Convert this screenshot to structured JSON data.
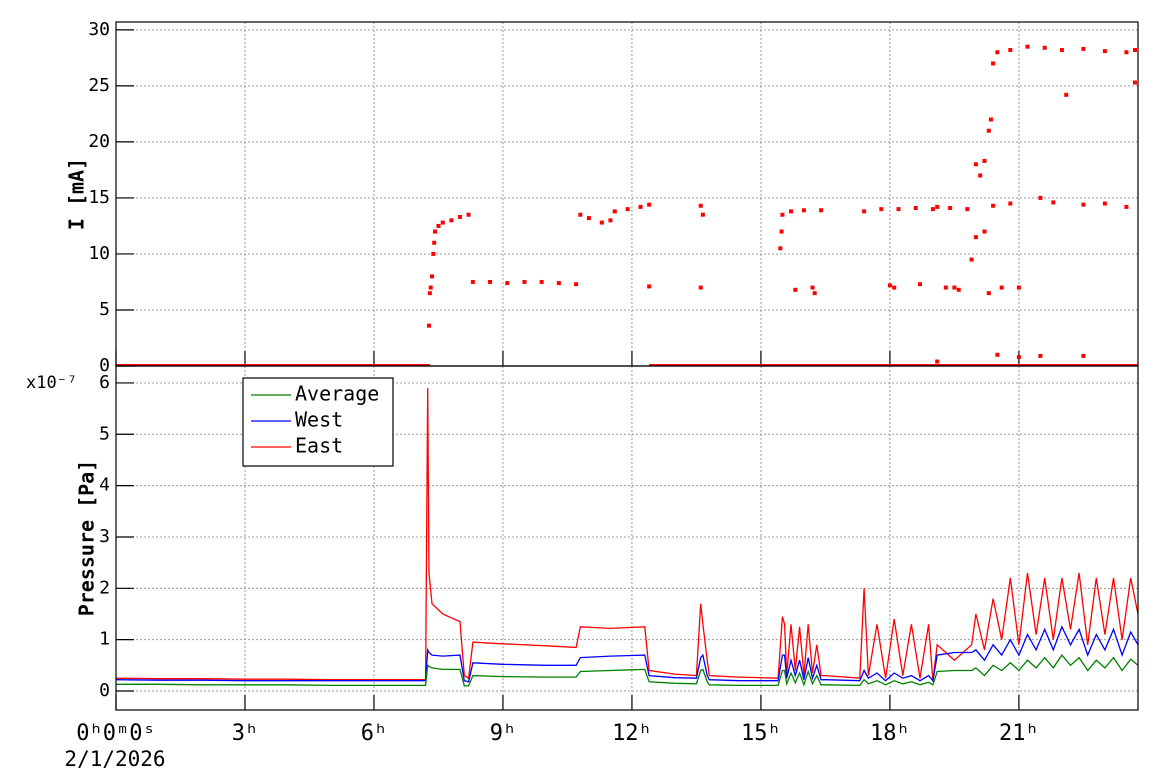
{
  "chart_data": [
    {
      "type": "scatter",
      "ylabel": "I [mA]",
      "xlim": [
        0,
        23.77
      ],
      "ylim": [
        0,
        30.7
      ],
      "yticks": [
        0,
        5,
        10,
        15,
        20,
        25,
        30
      ],
      "grid": true,
      "series": [
        {
          "color": "#ff0000",
          "style": "markers",
          "x": [
            7.28,
            7.3,
            7.32,
            7.35,
            7.38,
            7.4,
            7.42,
            7.5,
            7.6,
            7.8,
            8.0,
            8.2,
            8.3,
            8.7,
            9.1,
            9.5,
            9.9,
            10.3,
            10.7,
            10.8,
            11.0,
            11.3,
            11.5,
            11.6,
            11.9,
            12.2,
            12.4,
            12.4,
            13.6,
            13.65,
            13.6,
            15.45,
            15.48,
            15.5,
            15.7,
            16.0,
            16.4,
            15.8,
            16.2,
            16.25,
            17.4,
            17.8,
            18.2,
            18.6,
            19.0,
            18.0,
            18.1,
            18.7,
            19.1,
            19.4,
            19.8,
            19.3,
            19.5,
            19.6,
            19.9,
            20.0,
            20.0,
            20.1,
            20.2,
            20.3,
            20.35,
            20.4,
            20.5,
            20.8,
            21.2,
            21.6,
            22.0,
            22.5,
            23.0,
            23.5,
            23.7,
            23.7,
            22.1,
            20.4,
            20.8,
            21.5,
            21.8,
            22.5,
            23.0,
            23.5,
            20.2,
            20.3,
            20.6,
            21.0,
            19.1,
            20.5,
            21.0,
            21.5,
            22.5
          ],
          "values": [
            3.6,
            6.5,
            7.0,
            8.0,
            10.0,
            11.0,
            12.0,
            12.5,
            12.8,
            13.0,
            13.3,
            13.5,
            7.5,
            7.5,
            7.4,
            7.5,
            7.5,
            7.4,
            7.3,
            13.5,
            13.2,
            12.8,
            13.0,
            13.8,
            14.0,
            14.2,
            14.4,
            7.1,
            14.3,
            13.5,
            7.0,
            10.5,
            12.0,
            13.5,
            13.8,
            13.9,
            13.9,
            6.8,
            7.0,
            6.5,
            13.8,
            14.0,
            14.0,
            14.1,
            14.0,
            7.2,
            7.0,
            7.3,
            14.2,
            14.1,
            14.0,
            7.0,
            7.0,
            6.8,
            9.5,
            11.5,
            18.0,
            17.0,
            18.3,
            21.0,
            22.0,
            27.0,
            28.0,
            28.2,
            28.5,
            28.4,
            28.2,
            28.3,
            28.1,
            28.0,
            28.2,
            25.3,
            24.2,
            14.3,
            14.5,
            15.0,
            14.6,
            14.4,
            14.5,
            14.2,
            12.0,
            6.5,
            7.0,
            7.0,
            0.4,
            1.0,
            0.8,
            0.9,
            0.9
          ]
        },
        {
          "color": "#ff0000",
          "style": "line",
          "x": [
            0,
            7.3,
            7.35,
            12.4,
            23.77
          ],
          "values": [
            0,
            0,
            null,
            0,
            0
          ]
        }
      ]
    },
    {
      "type": "line",
      "ylabel": "Pressure [Pa]",
      "y_multiplier": "x10⁻⁷",
      "date_label": "2/1/2026",
      "legend": "top-left",
      "grid": true,
      "xlim": [
        0,
        23.77
      ],
      "ylim": [
        -0.37,
        6.33
      ],
      "yticks": [
        0,
        1,
        2,
        3,
        4,
        5,
        6
      ],
      "xticks": [
        {
          "value": 0,
          "label": "0ʰ0ᵐ0ˢ"
        },
        {
          "value": 3,
          "label": "3ʰ"
        },
        {
          "value": 6,
          "label": "6ʰ"
        },
        {
          "value": 9,
          "label": "9ʰ"
        },
        {
          "value": 12,
          "label": "12ʰ"
        },
        {
          "value": 15,
          "label": "15ʰ"
        },
        {
          "value": 18,
          "label": "18ʰ"
        },
        {
          "value": 21,
          "label": "21ʰ"
        }
      ],
      "x": [
        0,
        1,
        2,
        3,
        4,
        5,
        6,
        7.2,
        7.25,
        7.28,
        7.35,
        7.6,
        8.0,
        8.1,
        8.2,
        8.3,
        9,
        10,
        10.7,
        10.8,
        11.5,
        12.3,
        12.4,
        13,
        13.5,
        13.6,
        13.65,
        13.75,
        13.8,
        14.5,
        15.4,
        15.5,
        15.55,
        15.6,
        15.7,
        15.8,
        15.9,
        16.0,
        16.1,
        16.2,
        16.3,
        16.4,
        16.5,
        17.3,
        17.4,
        17.5,
        17.7,
        17.9,
        18.1,
        18.3,
        18.5,
        18.7,
        18.9,
        19.0,
        19.1,
        19.5,
        19.9,
        20.0,
        20.2,
        20.4,
        20.6,
        20.8,
        21.0,
        21.2,
        21.4,
        21.6,
        21.8,
        22.0,
        22.2,
        22.4,
        22.6,
        22.8,
        23.0,
        23.2,
        23.4,
        23.6,
        23.77
      ],
      "series": [
        {
          "name": "Average",
          "color": "#008000",
          "values": [
            0.13,
            0.13,
            0.12,
            0.12,
            0.12,
            0.11,
            0.11,
            0.11,
            0.5,
            0.48,
            0.45,
            0.42,
            0.42,
            0.1,
            0.1,
            0.3,
            0.28,
            0.27,
            0.27,
            0.38,
            0.4,
            0.42,
            0.18,
            0.15,
            0.14,
            0.4,
            0.42,
            0.18,
            0.12,
            0.11,
            0.11,
            0.4,
            0.4,
            0.14,
            0.35,
            0.16,
            0.35,
            0.12,
            0.38,
            0.14,
            0.3,
            0.12,
            0.12,
            0.11,
            0.22,
            0.14,
            0.2,
            0.12,
            0.2,
            0.14,
            0.18,
            0.12,
            0.17,
            0.12,
            0.38,
            0.4,
            0.4,
            0.45,
            0.3,
            0.5,
            0.4,
            0.55,
            0.4,
            0.6,
            0.45,
            0.65,
            0.45,
            0.7,
            0.5,
            0.65,
            0.4,
            0.6,
            0.45,
            0.65,
            0.4,
            0.62,
            0.5
          ]
        },
        {
          "name": "West",
          "color": "#0000ff",
          "values": [
            0.22,
            0.21,
            0.21,
            0.2,
            0.2,
            0.2,
            0.2,
            0.2,
            0.8,
            0.75,
            0.7,
            0.68,
            0.7,
            0.2,
            0.18,
            0.55,
            0.52,
            0.5,
            0.5,
            0.65,
            0.68,
            0.7,
            0.3,
            0.26,
            0.25,
            0.65,
            0.7,
            0.3,
            0.22,
            0.2,
            0.2,
            0.7,
            0.7,
            0.25,
            0.6,
            0.3,
            0.6,
            0.22,
            0.65,
            0.25,
            0.5,
            0.22,
            0.22,
            0.2,
            0.4,
            0.25,
            0.35,
            0.2,
            0.35,
            0.25,
            0.3,
            0.2,
            0.3,
            0.2,
            0.7,
            0.75,
            0.75,
            0.8,
            0.6,
            0.9,
            0.7,
            1.0,
            0.7,
            1.1,
            0.8,
            1.2,
            0.8,
            1.25,
            0.9,
            1.2,
            0.7,
            1.1,
            0.8,
            1.2,
            0.7,
            1.15,
            0.9
          ]
        },
        {
          "name": "East",
          "color": "#ff0000",
          "values": [
            0.25,
            0.24,
            0.24,
            0.23,
            0.23,
            0.22,
            0.22,
            0.22,
            5.9,
            2.3,
            1.7,
            1.5,
            1.35,
            0.3,
            0.25,
            0.95,
            0.92,
            0.88,
            0.85,
            1.25,
            1.22,
            1.25,
            0.4,
            0.33,
            0.3,
            1.7,
            1.3,
            0.6,
            0.3,
            0.27,
            0.25,
            1.45,
            1.3,
            0.3,
            1.3,
            0.4,
            1.25,
            0.3,
            1.3,
            0.35,
            0.9,
            0.3,
            0.3,
            0.25,
            2.0,
            0.3,
            1.3,
            0.25,
            1.4,
            0.3,
            1.3,
            0.25,
            1.3,
            0.2,
            0.9,
            0.6,
            0.9,
            1.5,
            0.8,
            1.8,
            1.0,
            2.2,
            0.9,
            2.3,
            1.1,
            2.2,
            1.0,
            2.2,
            1.2,
            2.3,
            0.9,
            2.2,
            1.1,
            2.2,
            1.0,
            2.2,
            1.5
          ]
        }
      ]
    }
  ]
}
